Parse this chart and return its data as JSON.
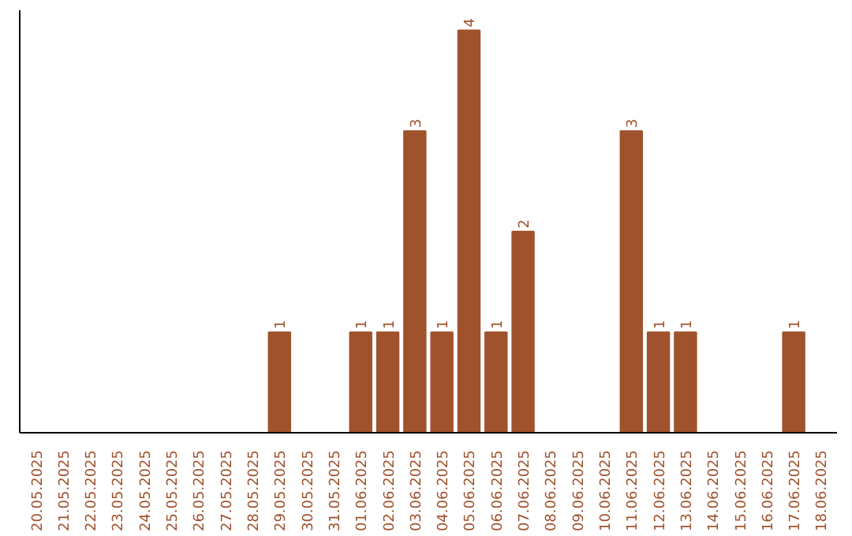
{
  "chart_data": {
    "type": "bar",
    "categories": [
      "20.05.2025",
      "21.05.2025",
      "22.05.2025",
      "23.05.2025",
      "24.05.2025",
      "25.05.2025",
      "26.05.2025",
      "27.05.2025",
      "28.05.2025",
      "29.05.2025",
      "30.05.2025",
      "31.05.2025",
      "01.06.2025",
      "02.06.2025",
      "03.06.2025",
      "04.06.2025",
      "05.06.2025",
      "06.06.2025",
      "07.06.2025",
      "08.06.2025",
      "09.06.2025",
      "10.06.2025",
      "11.06.2025",
      "12.06.2025",
      "13.06.2025",
      "14.06.2025",
      "15.06.2025",
      "16.06.2025",
      "17.06.2025",
      "18.06.2025"
    ],
    "values": [
      0,
      0,
      0,
      0,
      0,
      0,
      0,
      0,
      0,
      1,
      0,
      0,
      1,
      1,
      3,
      1,
      4,
      1,
      2,
      0,
      0,
      0,
      3,
      1,
      1,
      0,
      0,
      0,
      1,
      0
    ],
    "value_labels": [
      null,
      null,
      null,
      null,
      null,
      null,
      null,
      null,
      null,
      "1",
      null,
      null,
      "1",
      "1",
      "3",
      "1",
      "4",
      "1",
      "2",
      null,
      null,
      null,
      "3",
      "1",
      "1",
      null,
      null,
      null,
      "1",
      null
    ],
    "color": "#a0522d",
    "grid": false
  }
}
